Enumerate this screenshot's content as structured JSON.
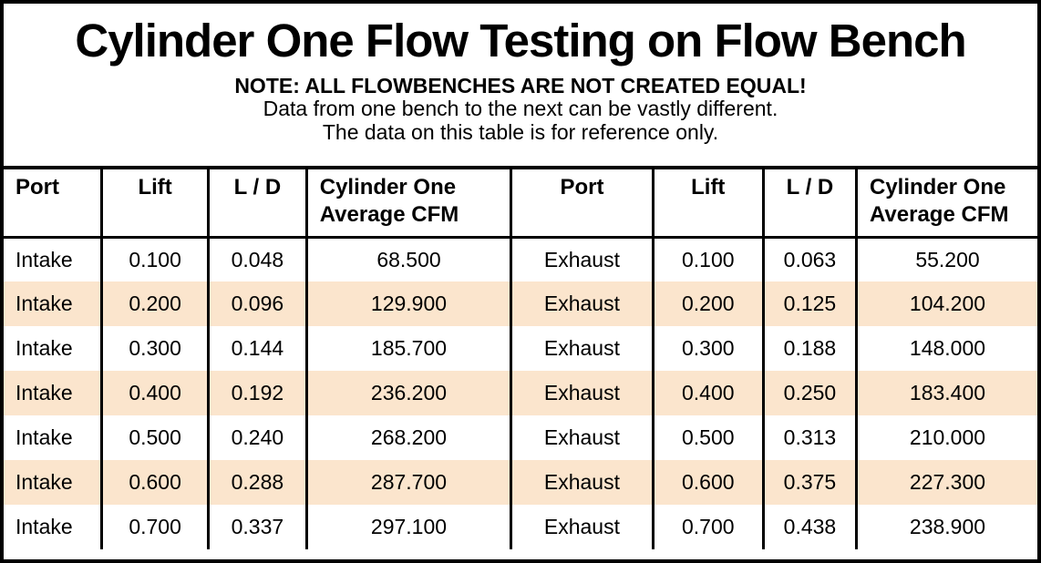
{
  "title": "Cylinder One Flow Testing on Flow Bench",
  "notes": {
    "line1": "NOTE: ALL FLOWBENCHES ARE NOT CREATED EQUAL!",
    "line2": "Data from one bench to the next can be vastly different.",
    "line3": "The data on this table is for reference only."
  },
  "colors": {
    "stripe": "#FBE5CD",
    "border": "#000000",
    "background": "#FFFFFF",
    "text": "#000000"
  },
  "table": {
    "headers": [
      "Port",
      "Lift",
      "L / D",
      "Cylinder One Average CFM",
      "Port",
      "Lift",
      "L / D",
      "Cylinder One Average CFM"
    ],
    "rows": [
      [
        "Intake",
        "0.100",
        "0.048",
        "68.500",
        "Exhaust",
        "0.100",
        "0.063",
        "55.200"
      ],
      [
        "Intake",
        "0.200",
        "0.096",
        "129.900",
        "Exhaust",
        "0.200",
        "0.125",
        "104.200"
      ],
      [
        "Intake",
        "0.300",
        "0.144",
        "185.700",
        "Exhaust",
        "0.300",
        "0.188",
        "148.000"
      ],
      [
        "Intake",
        "0.400",
        "0.192",
        "236.200",
        "Exhaust",
        "0.400",
        "0.250",
        "183.400"
      ],
      [
        "Intake",
        "0.500",
        "0.240",
        "268.200",
        "Exhaust",
        "0.500",
        "0.313",
        "210.000"
      ],
      [
        "Intake",
        "0.600",
        "0.288",
        "287.700",
        "Exhaust",
        "0.600",
        "0.375",
        "227.300"
      ],
      [
        "Intake",
        "0.700",
        "0.337",
        "297.100",
        "Exhaust",
        "0.700",
        "0.438",
        "238.900"
      ]
    ]
  },
  "chart_data": {
    "type": "table",
    "title": "Cylinder One Flow Testing on Flow Bench",
    "columns": [
      "Port",
      "Lift",
      "L / D",
      "Cylinder One Average CFM"
    ],
    "series": [
      {
        "name": "Intake",
        "lift": [
          0.1,
          0.2,
          0.3,
          0.4,
          0.5,
          0.6,
          0.7
        ],
        "l_over_d": [
          0.048,
          0.096,
          0.144,
          0.192,
          0.24,
          0.288,
          0.337
        ],
        "average_cfm": [
          68.5,
          129.9,
          185.7,
          236.2,
          268.2,
          287.7,
          297.1
        ]
      },
      {
        "name": "Exhaust",
        "lift": [
          0.1,
          0.2,
          0.3,
          0.4,
          0.5,
          0.6,
          0.7
        ],
        "l_over_d": [
          0.063,
          0.125,
          0.188,
          0.25,
          0.313,
          0.375,
          0.438
        ],
        "average_cfm": [
          55.2,
          104.2,
          148.0,
          183.4,
          210.0,
          227.3,
          238.9
        ]
      }
    ],
    "layout": {
      "striped_rows": true,
      "stripe_color": "#FBE5CD",
      "grid": "vertical-only"
    }
  }
}
